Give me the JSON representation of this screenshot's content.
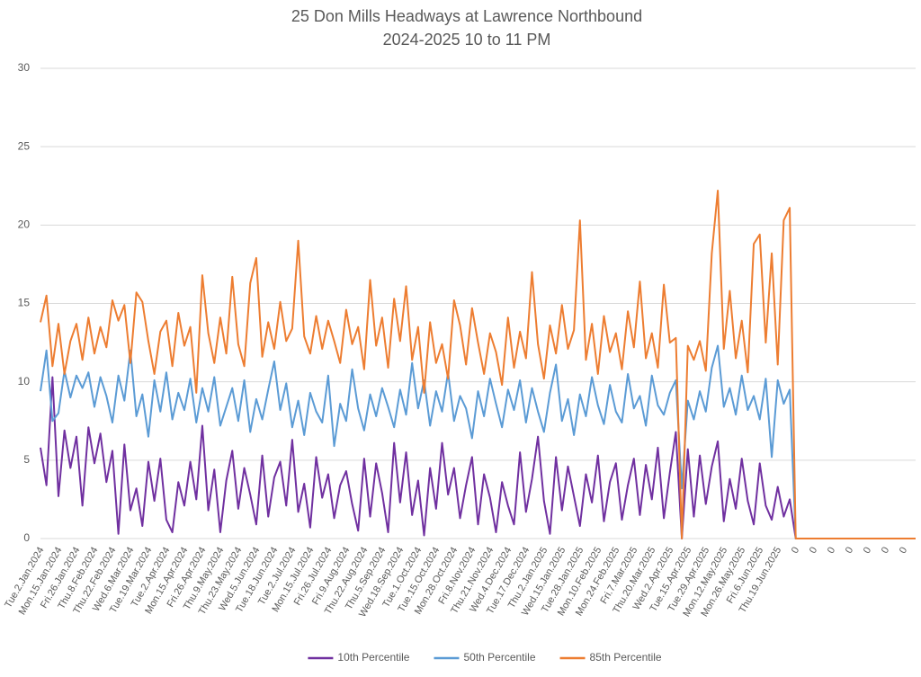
{
  "chart_data": {
    "type": "line",
    "title": "25 Don Mills Headways at Lawrence Northbound",
    "subtitle": "2024-2025 10 to 11 PM",
    "categories": [
      "Tue.2.Jan.2024",
      null,
      null,
      "Mon.15.Jan.2024",
      null,
      null,
      "Fri.26.Jan.2024",
      null,
      null,
      "Thu.8.Feb.2024",
      null,
      null,
      "Thu.22.Feb.2024",
      null,
      null,
      "Wed.6.Mar.2024",
      null,
      null,
      "Tue.19.Mar.2024",
      null,
      null,
      "Tue.2.Apr.2024",
      null,
      null,
      "Mon.15.Apr.2024",
      null,
      null,
      "Fri.26.Apr.2024",
      null,
      null,
      "Thu.9.May.2024",
      null,
      null,
      "Thu.23.May.2024",
      null,
      null,
      "Wed.5.Jun.2024",
      null,
      null,
      "Tue.18.Jun.2024",
      null,
      null,
      "Tue.2.Jul.2024",
      null,
      null,
      "Mon.15.Jul.2024",
      null,
      null,
      "Fri.26.Jul.2024",
      null,
      null,
      "Fri.9.Aug.2024",
      null,
      null,
      "Thu.22.Aug.2024",
      null,
      null,
      "Thu.5.Sep.2024",
      null,
      null,
      "Wed.18.Sep.2024",
      null,
      null,
      "Tue.1.Oct.2024",
      null,
      null,
      "Tue.15.Oct.2024",
      null,
      null,
      "Mon.28.Oct.2024",
      null,
      null,
      "Fri.8.Nov.2024",
      null,
      null,
      "Thu.21.Nov.2024",
      null,
      null,
      "Wed.4.Dec.2024",
      null,
      null,
      "Tue.17.Dec.2024",
      null,
      null,
      "Thu.2.Jan.2025",
      null,
      null,
      "Wed.15.Jan.2025",
      null,
      null,
      "Tue.28.Jan.2025",
      null,
      null,
      "Mon.10.Feb.2025",
      null,
      null,
      "Mon.24.Feb.2025",
      null,
      null,
      "Fri.7.Mar.2025",
      null,
      null,
      "Thu.20.Mar.2025",
      null,
      null,
      "Wed.2.Apr.2025",
      null,
      null,
      "Tue.15.Apr.2025",
      null,
      null,
      "Tue.29.Apr.2025",
      null,
      null,
      "Mon.12.May.2025",
      null,
      null,
      "Mon.26.May.2025",
      null,
      null,
      "Fri.6.Jun.2025",
      null,
      null,
      "Thu.19.Jun.2025",
      null,
      null,
      "0",
      null,
      null,
      "0",
      null,
      null,
      "0",
      null,
      null,
      "0",
      null,
      null,
      "0",
      null,
      null,
      "0",
      null,
      null,
      "0",
      null,
      null
    ],
    "series": [
      {
        "name": "10th Percentile",
        "color": "#7030a0",
        "values": [
          5.8,
          3.4,
          10.3,
          2.7,
          6.9,
          4.5,
          6.5,
          2.1,
          7.1,
          4.8,
          6.7,
          3.6,
          5.6,
          0.3,
          6,
          1.8,
          3.2,
          0.8,
          4.9,
          2.4,
          5.1,
          1.2,
          0.4,
          3.6,
          2.1,
          4.9,
          2.5,
          7.2,
          1.8,
          4.4,
          0.4,
          3.7,
          5.6,
          1.9,
          4.5,
          2.8,
          0.9,
          5.3,
          1.4,
          3.9,
          4.9,
          2.1,
          6.3,
          1.7,
          3.5,
          0.7,
          5.2,
          2.6,
          4.1,
          1.3,
          3.4,
          4.3,
          2.2,
          0.5,
          5.1,
          1.4,
          4.8,
          2.9,
          0.4,
          6.1,
          2.3,
          5.5,
          1.5,
          3.7,
          0.2,
          4.5,
          1.9,
          6.1,
          2.8,
          4.5,
          1.3,
          3.4,
          5.2,
          0.9,
          4.1,
          2.6,
          0.4,
          3.6,
          2.1,
          0.9,
          5.5,
          1.7,
          3.8,
          6.5,
          2.4,
          0.3,
          5.2,
          1.8,
          4.6,
          2.7,
          0.8,
          4.1,
          2.3,
          5.3,
          1.1,
          3.6,
          4.8,
          1.2,
          3.4,
          5.1,
          1.5,
          4.7,
          2.5,
          5.8,
          1.3,
          4.2,
          6.8,
          0,
          5.7,
          1.4,
          5.3,
          2.2,
          4.6,
          6.2,
          1.1,
          3.8,
          1.9,
          5.1,
          2.4,
          0.9,
          4.8,
          2.1,
          1.2,
          3.3,
          1.4,
          2.5,
          0,
          0,
          0,
          0,
          0,
          0,
          0,
          0,
          0,
          0,
          0,
          0,
          0,
          0,
          0,
          0,
          0,
          0,
          0,
          0,
          0
        ]
      },
      {
        "name": "50th Percentile",
        "color": "#5b9bd5",
        "values": [
          9.4,
          12,
          7.5,
          8,
          10.7,
          9,
          10.4,
          9.6,
          10.6,
          8.4,
          10.3,
          9.1,
          7.4,
          10.4,
          8.8,
          12,
          7.8,
          9.2,
          6.5,
          10.1,
          8.1,
          10.6,
          7.6,
          9.3,
          8.2,
          10.2,
          7.4,
          9.6,
          8.1,
          10.3,
          7.2,
          8.4,
          9.6,
          7.5,
          10.1,
          6.8,
          8.9,
          7.6,
          9.5,
          11.3,
          8.2,
          9.9,
          7.1,
          8.8,
          6.6,
          9.3,
          8.1,
          7.4,
          10.4,
          5.9,
          8.6,
          7.5,
          10.8,
          8.3,
          6.9,
          9.2,
          7.8,
          9.6,
          8.4,
          7.1,
          9.5,
          7.9,
          11.2,
          8.3,
          10.1,
          7.2,
          9.4,
          8.1,
          10.6,
          7.5,
          9.1,
          8.3,
          6.4,
          9.4,
          7.8,
          10.2,
          8.6,
          7.1,
          9.5,
          8.2,
          10.1,
          7.4,
          9.6,
          8.1,
          6.8,
          9.3,
          11.1,
          7.5,
          8.9,
          6.6,
          9.2,
          7.8,
          10.3,
          8.5,
          7.3,
          9.8,
          8.1,
          7.4,
          10.5,
          8.3,
          9.1,
          7.2,
          10.4,
          8.5,
          7.9,
          9.3,
          10.1,
          3.2,
          8.8,
          7.6,
          9.4,
          8.1,
          10.9,
          12.3,
          8.4,
          9.6,
          7.9,
          10.4,
          8.2,
          9.1,
          7.6,
          10.2,
          5.2,
          10.1,
          8.6,
          9.5,
          0,
          0,
          0,
          0,
          0,
          0,
          0,
          0,
          0,
          0,
          0,
          0,
          0,
          0,
          0,
          0,
          0,
          0,
          0,
          0,
          0
        ]
      },
      {
        "name": "85th Percentile",
        "color": "#ed7d31",
        "values": [
          13.8,
          15.5,
          11,
          13.7,
          10.5,
          12.6,
          13.7,
          11.4,
          14.1,
          11.8,
          13.5,
          12.2,
          15.2,
          13.9,
          14.9,
          11.2,
          15.7,
          15.1,
          12.6,
          10.5,
          13.2,
          13.9,
          11,
          14.4,
          12.3,
          13.5,
          9.3,
          16.8,
          13.1,
          11.2,
          14.1,
          11.8,
          16.7,
          12.4,
          11,
          16.3,
          17.9,
          11.6,
          13.8,
          12.1,
          15.1,
          12.6,
          13.4,
          19,
          12.9,
          11.8,
          14.2,
          12.1,
          13.9,
          12.6,
          11.2,
          14.6,
          12.4,
          13.5,
          10.8,
          16.5,
          12.3,
          14.1,
          10.9,
          15.3,
          12.6,
          16.1,
          11.4,
          13.5,
          9.3,
          13.8,
          11.2,
          12.4,
          10.2,
          15.2,
          13.6,
          11.1,
          14.7,
          12.5,
          10.5,
          13.1,
          11.9,
          9.8,
          14.1,
          10.9,
          13.2,
          11.5,
          17,
          12.4,
          10.2,
          13.6,
          11.8,
          14.9,
          12.1,
          13.3,
          20.3,
          11.4,
          13.7,
          10.5,
          14.2,
          11.9,
          13.1,
          10.8,
          14.5,
          12.2,
          16.4,
          11.5,
          13.1,
          10.9,
          16.2,
          12.5,
          12.8,
          0,
          12.3,
          11.4,
          12.6,
          10.7,
          18.2,
          22.2,
          12.1,
          15.8,
          11.5,
          13.9,
          10.6,
          18.8,
          19.4,
          12.5,
          18.2,
          11.1,
          20.3,
          21.1,
          0,
          0,
          0,
          0,
          0,
          0,
          0,
          0,
          0,
          0,
          0,
          0,
          0,
          0,
          0,
          0,
          0,
          0,
          0,
          0,
          0
        ]
      }
    ],
    "ylim": [
      0,
      30
    ],
    "yticks": [
      0,
      5,
      10,
      15,
      20,
      25,
      30
    ],
    "grid": true,
    "legend": "bottom"
  }
}
